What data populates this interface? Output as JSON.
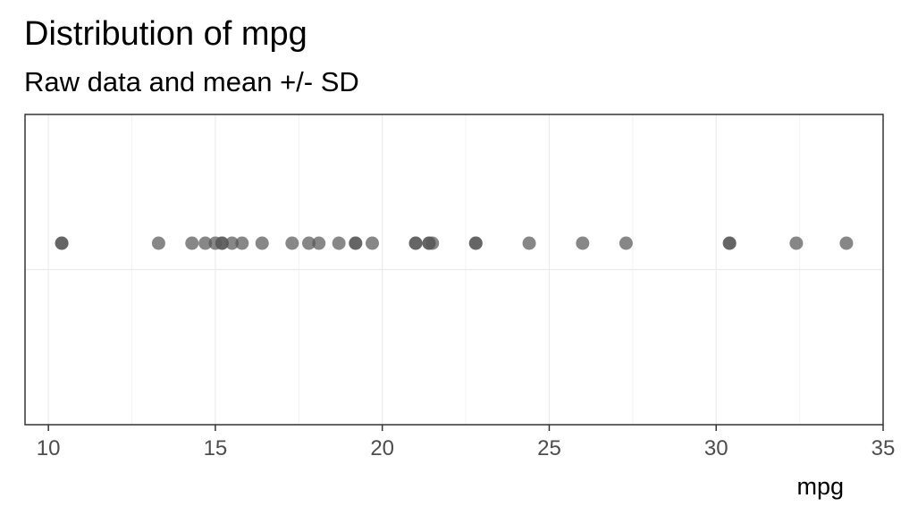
{
  "chart_data": {
    "type": "scatter",
    "title": "Distribution of mpg",
    "subtitle": "Raw data and mean +/- SD",
    "xlabel": "mpg",
    "ylabel": "",
    "xlim": [
      9.3,
      35.0
    ],
    "x_ticks": [
      10,
      15,
      20,
      25,
      30,
      35
    ],
    "x_tick_labels": [
      "10",
      "15",
      "20",
      "25",
      "30",
      "35"
    ],
    "grid": true,
    "legend": "none",
    "point_color": "#595959",
    "series": [
      {
        "values": [
          21.0,
          21.0,
          22.8,
          21.4,
          18.7,
          18.1,
          14.3,
          24.4,
          22.8,
          19.2,
          17.8,
          16.4,
          17.3,
          15.2,
          10.4,
          10.4,
          14.7,
          32.4,
          30.4,
          33.9,
          21.5,
          15.5,
          15.2,
          13.3,
          19.2,
          27.3,
          26.0,
          30.4,
          15.8,
          19.7,
          15.0,
          21.4
        ]
      }
    ]
  }
}
